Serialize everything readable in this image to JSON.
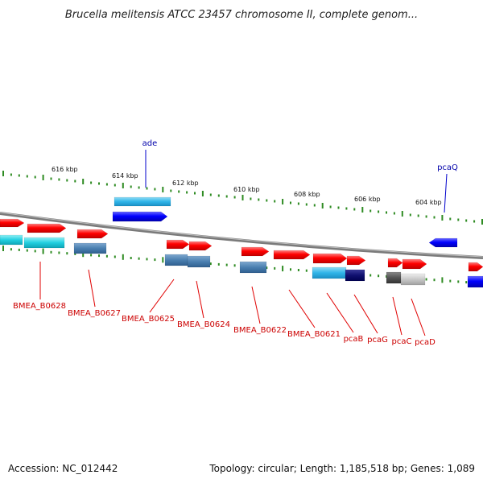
{
  "title": "Brucella melitensis ATCC 23457 chromosome II, complete genom...",
  "footer": {
    "accession": "Accession: NC_012442",
    "summary": "Topology: circular; Length: 1,185,518 bp; Genes: 1,089"
  },
  "ruler_labels": [
    "616 kbp",
    "614 kbp",
    "612 kbp",
    "610 kbp",
    "608 kbp",
    "606 kbp",
    "604 kbp"
  ],
  "gene_labels_top": [
    "ade",
    "pcaQ"
  ],
  "gene_labels_bottom": [
    "BMEA_B0628",
    "BMEA_B0627",
    "BMEA_B0625",
    "BMEA_B0624",
    "BMEA_B0622",
    "BMEA_B0621",
    "pcaB",
    "pcaG",
    "pcaC",
    "pcaD"
  ],
  "colors": {
    "cds": "#ff0000",
    "gene_feature": "#3399dd",
    "protein_feature": "#00ccdd",
    "forward_strand": "#1a1aff",
    "ruler_ticks": "#2e8b22",
    "top_label": "#0000aa",
    "bottom_label": "#cc0000"
  }
}
